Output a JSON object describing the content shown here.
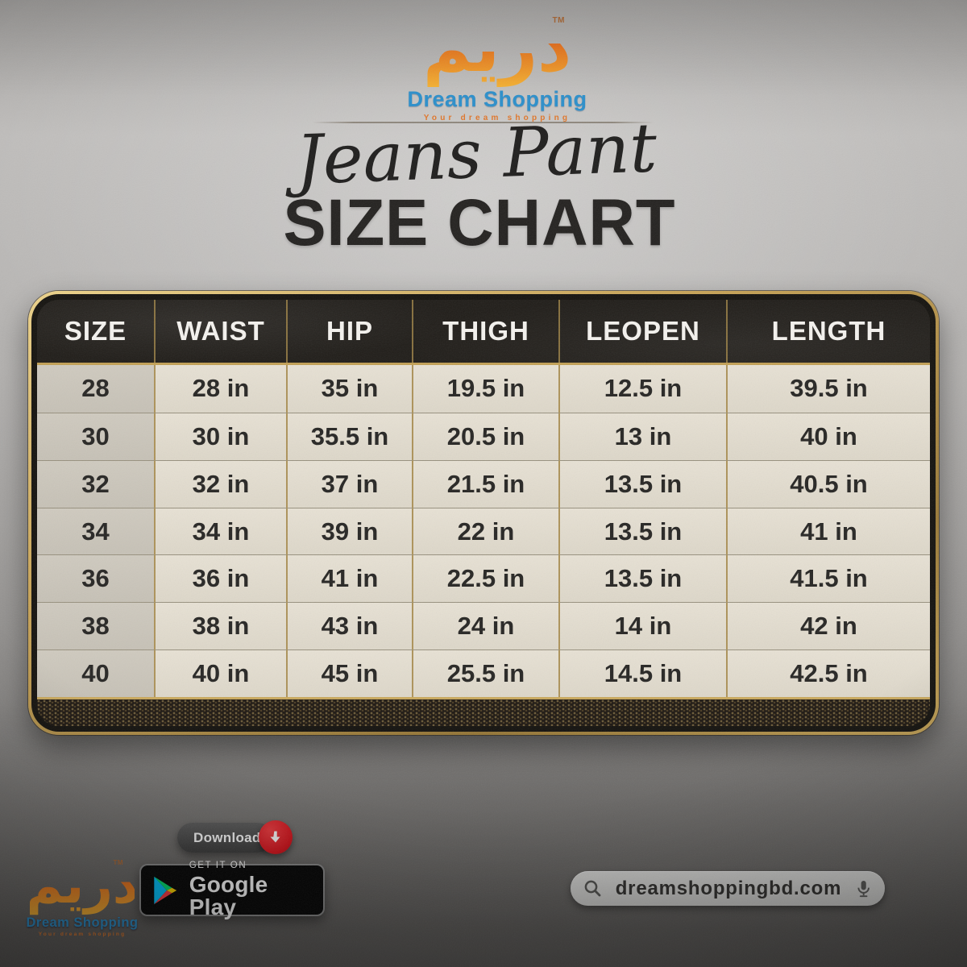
{
  "brand": {
    "arabic_wordmark": "دريم",
    "trademark": "TM",
    "name": "Dream Shopping",
    "tagline": "Your dream shopping",
    "colors": {
      "calligraphy_top": "#d63a1e",
      "calligraphy_mid": "#ee7a1f",
      "calligraphy_bottom": "#f6b232",
      "name_blue": "#2b8fcb",
      "tagline_orange": "#e0762a"
    }
  },
  "title": {
    "script": "Jeans Pant",
    "heading": "SIZE CHART"
  },
  "chart_data": {
    "type": "table",
    "title": "SIZE CHART",
    "subtitle": "Jeans Pant",
    "columns": [
      "SIZE",
      "WAIST",
      "HIP",
      "THIGH",
      "LEOPEN",
      "LENGTH"
    ],
    "rows": [
      [
        "28",
        "28 in",
        "35 in",
        "19.5 in",
        "12.5 in",
        "39.5 in"
      ],
      [
        "30",
        "30 in",
        "35.5 in",
        "20.5 in",
        "13 in",
        "40 in"
      ],
      [
        "32",
        "32 in",
        "37 in",
        "21.5 in",
        "13.5 in",
        "40.5 in"
      ],
      [
        "34",
        "34 in",
        "39 in",
        "22 in",
        "13.5 in",
        "41 in"
      ],
      [
        "36",
        "36 in",
        "41 in",
        "22.5 in",
        "13.5 in",
        "41.5 in"
      ],
      [
        "38",
        "38 in",
        "43 in",
        "24 in",
        "14 in",
        "42 in"
      ],
      [
        "40",
        "40 in",
        "45 in",
        "25.5 in",
        "14.5 in",
        "42.5 in"
      ]
    ],
    "unit": "in",
    "style": {
      "header_bg": "#201d19",
      "header_text": "#ffffff",
      "cell_bg": "#e3ddd0",
      "size_column_bg": "#cdc7bc",
      "gold_border": "#c5a154"
    }
  },
  "footer": {
    "download": {
      "label": "Download",
      "button_color": "#474747",
      "arrow_badge_color": "#d8121b"
    },
    "google_play": {
      "get_it_on": "GET IT ON",
      "store_name": "Google Play"
    },
    "search": {
      "text": "dreamshoppingbd.com"
    }
  }
}
